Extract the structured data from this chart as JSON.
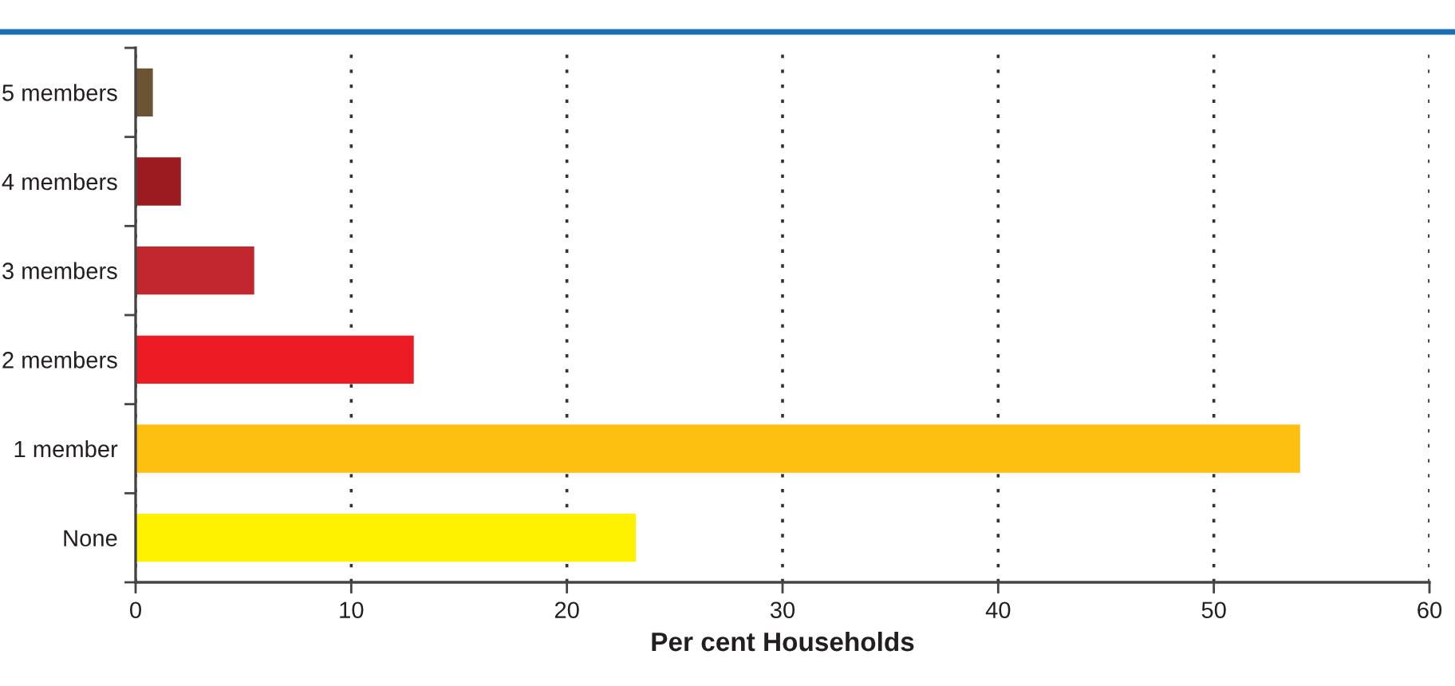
{
  "chart_data": {
    "type": "bar",
    "orientation": "horizontal",
    "categories": [
      "5 members",
      "4 members",
      "3 members",
      "2 members",
      "1 member",
      "None"
    ],
    "values": [
      0.8,
      2.1,
      5.5,
      12.9,
      54.0,
      23.2
    ],
    "colors": [
      "#6b5433",
      "#9c1b21",
      "#c1272d",
      "#ed1c24",
      "#fdc010",
      "#fff200"
    ],
    "xlabel": "Per cent Households",
    "xlim": [
      0,
      60
    ],
    "xticks": [
      0,
      10,
      20,
      30,
      40,
      50,
      60
    ],
    "grid": "x"
  }
}
